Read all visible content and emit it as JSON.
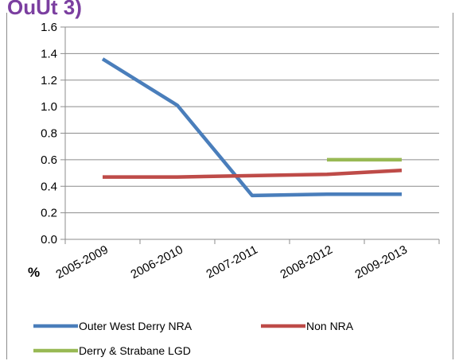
{
  "header_fragment": "OuUt 3)",
  "chart_data": {
    "type": "line",
    "title": "",
    "xlabel": "",
    "ylabel": "%",
    "categories": [
      "2005-2009",
      "2006-2010",
      "2007-2011",
      "2008-2012",
      "2009-2013"
    ],
    "ylim": [
      0.0,
      1.6
    ],
    "yticks": [
      "0.0",
      "0.2",
      "0.4",
      "0.6",
      "0.8",
      "1.0",
      "1.2",
      "1.4",
      "1.6"
    ],
    "grid": true,
    "legend_position": "bottom",
    "series": [
      {
        "name": "Outer West Derry NRA",
        "color": "#4a7ebb",
        "values": [
          1.36,
          1.01,
          0.33,
          0.34,
          0.34
        ]
      },
      {
        "name": "Non NRA",
        "color": "#be4b48",
        "values": [
          0.47,
          0.47,
          0.48,
          0.49,
          0.52
        ]
      },
      {
        "name": "Derry & Strabane LGD",
        "color": "#98b954",
        "values": [
          null,
          null,
          null,
          0.6,
          0.6
        ]
      }
    ]
  }
}
